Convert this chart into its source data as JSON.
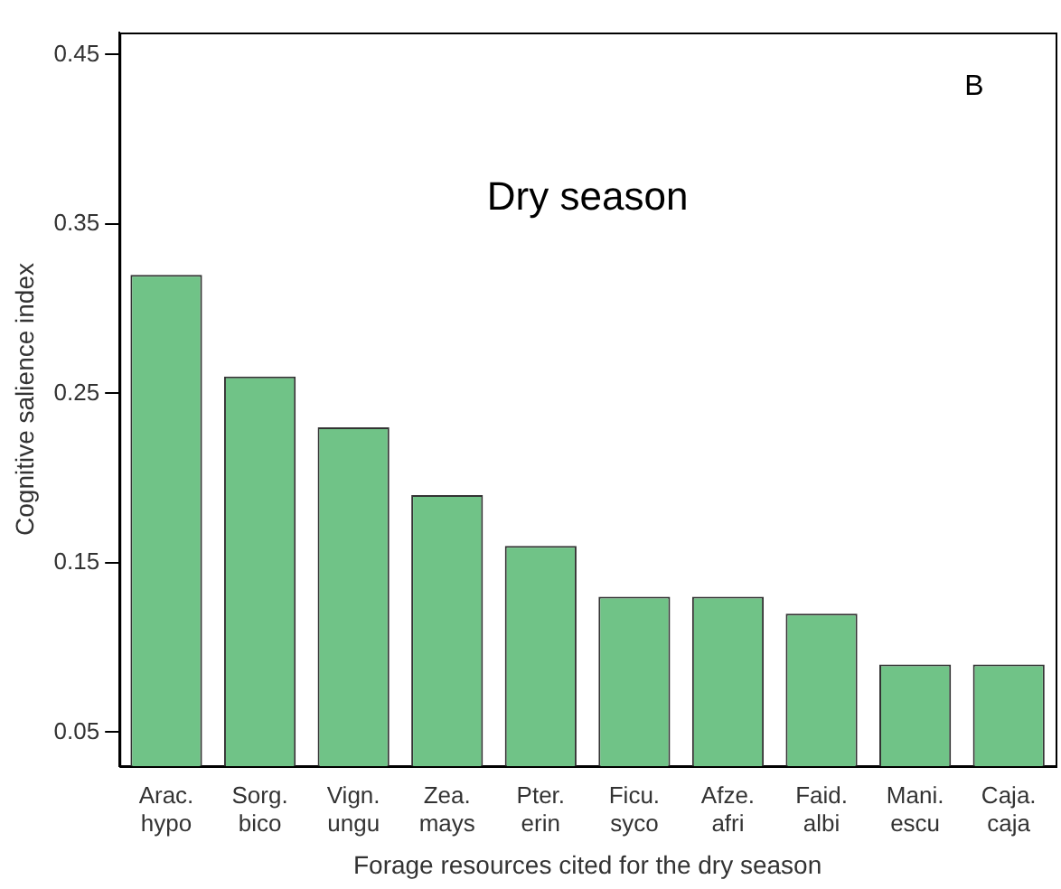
{
  "chart_data": {
    "type": "bar",
    "title": "Dry season",
    "annotations": [
      "B"
    ],
    "xlabel": "Forage resources cited for the dry season",
    "ylabel": "Cognitive salience index",
    "categories": [
      "Arac.\nhypo",
      "Sorg.\nbico",
      "Vign.\nungu",
      "Zea.\nmays",
      "Pter.\nerin",
      "Ficu.\nsyco",
      "Afze.\nafri",
      "Faid.\nalbi",
      "Mani.\nescu",
      "Caja.\ncaja"
    ],
    "values": [
      0.32,
      0.26,
      0.23,
      0.19,
      0.16,
      0.13,
      0.13,
      0.12,
      0.09,
      0.09
    ],
    "color": "#70c387",
    "ylim": [
      0.03,
      0.463
    ],
    "yticks": [
      0.05,
      0.15,
      0.25,
      0.35,
      0.45
    ],
    "grid": false,
    "legend": false
  }
}
